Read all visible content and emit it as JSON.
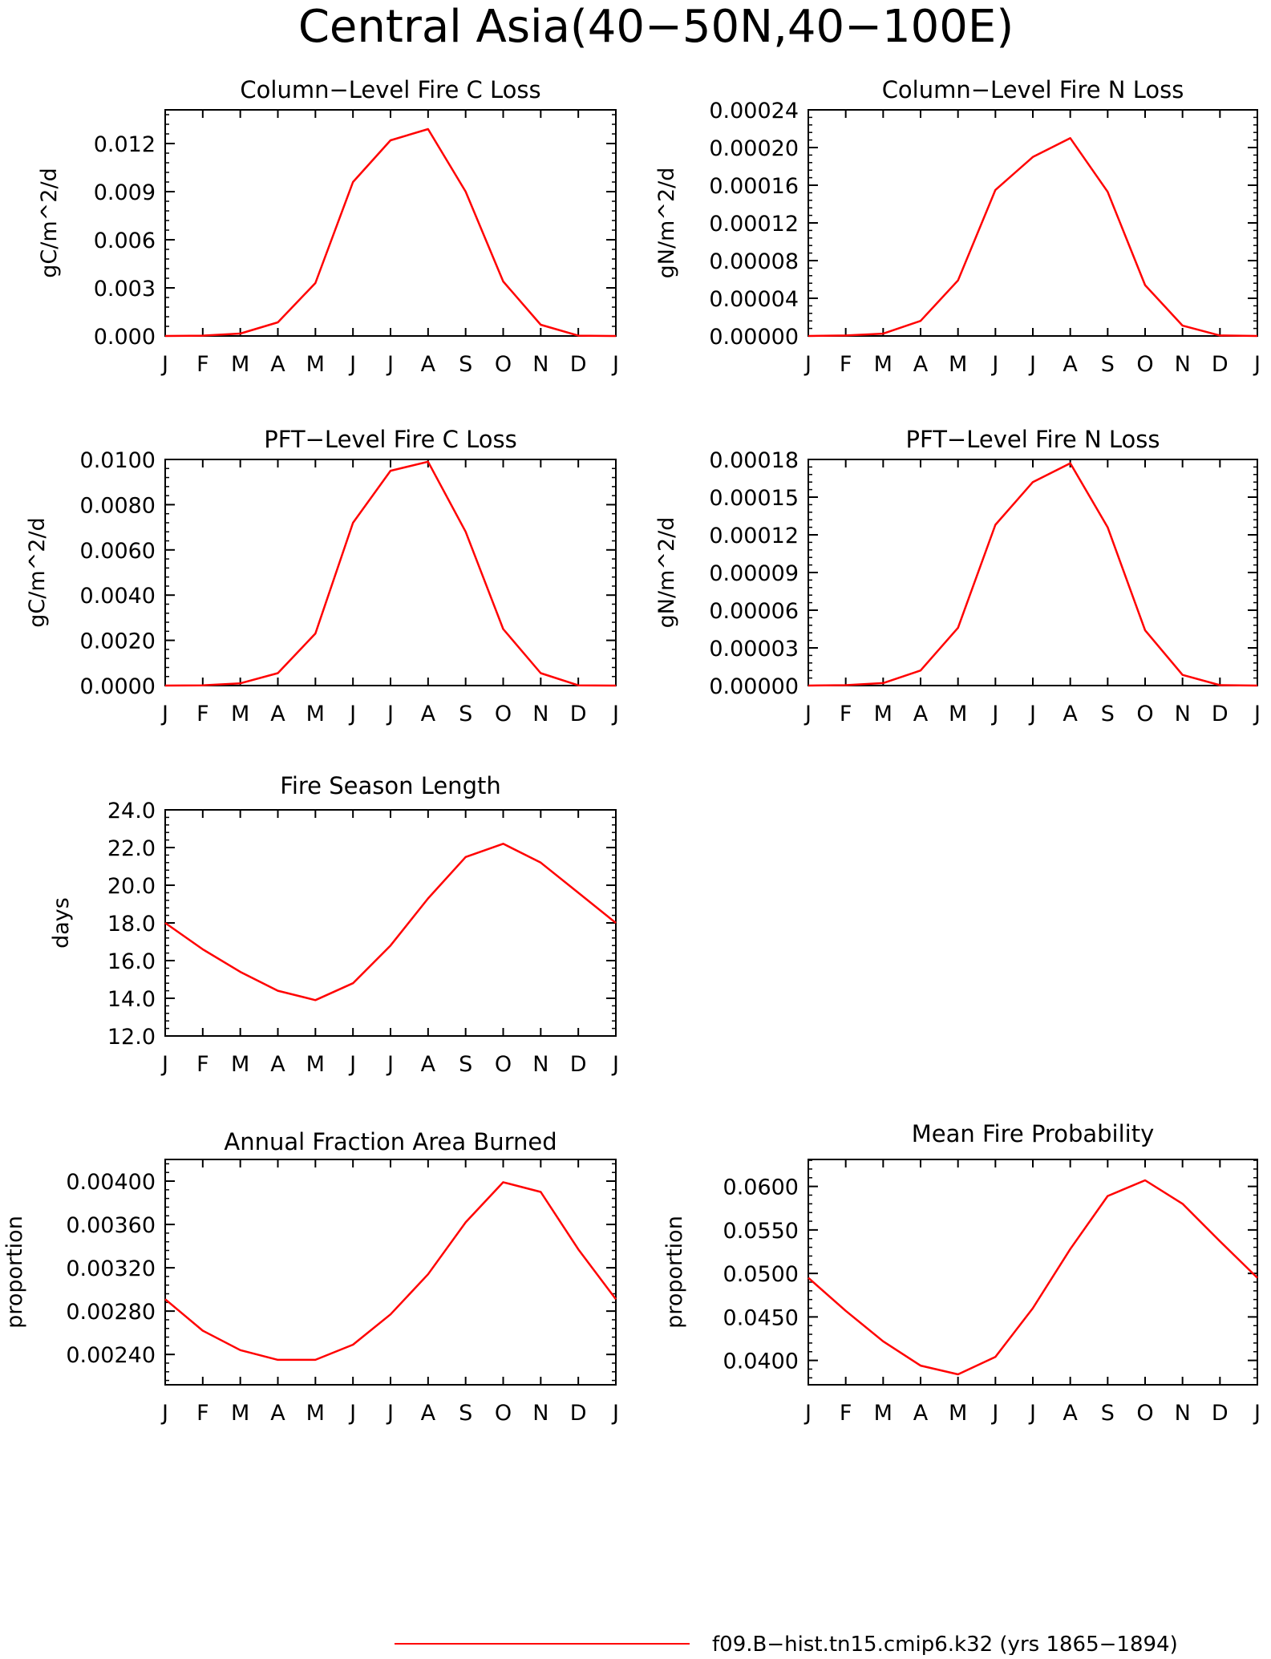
{
  "title": "Central Asia(40−50N,40−100E)",
  "colors": {
    "series": "#ff0000",
    "axes": "#000000",
    "background": "#ffffff"
  },
  "legend": {
    "label": "f09.B−hist.tn15.cmip6.k32 (yrs 1865−1894)",
    "color": "#ff0000"
  },
  "chart_data": [
    {
      "type": "line",
      "title": "Column−Level Fire C Loss",
      "ylabel": "gC/m^2/d",
      "categories": [
        "J",
        "F",
        "M",
        "A",
        "M",
        "J",
        "J",
        "A",
        "S",
        "O",
        "N",
        "D",
        "J"
      ],
      "ylim": [
        0,
        0.0141
      ],
      "yticks": [
        0,
        0.003,
        0.006,
        0.009,
        0.012
      ],
      "ytick_labels": [
        "0.000",
        "0.003",
        "0.006",
        "0.009",
        "0.012"
      ],
      "series": [
        {
          "values": [
            0.0,
            2e-05,
            0.00015,
            0.00085,
            0.0033,
            0.0096,
            0.0122,
            0.0129,
            0.009,
            0.0034,
            0.0007,
            2e-05,
            0.0
          ]
        }
      ]
    },
    {
      "type": "line",
      "title": "Column−Level Fire N Loss",
      "ylabel": "gN/m^2/d",
      "categories": [
        "J",
        "F",
        "M",
        "A",
        "M",
        "J",
        "J",
        "A",
        "S",
        "O",
        "N",
        "D",
        "J"
      ],
      "ylim": [
        0,
        0.00024
      ],
      "yticks": [
        0,
        4e-05,
        8e-05,
        0.00012,
        0.00016,
        0.0002,
        0.00024
      ],
      "ytick_labels": [
        "0.00000",
        "0.00004",
        "0.00008",
        "0.00012",
        "0.00016",
        "0.00020",
        "0.00024"
      ],
      "series": [
        {
          "values": [
            0.0,
            5e-07,
            2.5e-06,
            1.6e-05,
            5.9e-05,
            0.000155,
            0.00019,
            0.00021,
            0.000153,
            5.4e-05,
            1.1e-05,
            5e-07,
            0.0
          ]
        }
      ]
    },
    {
      "type": "line",
      "title": "PFT−Level Fire C Loss",
      "ylabel": "gC/m^2/d",
      "categories": [
        "J",
        "F",
        "M",
        "A",
        "M",
        "J",
        "J",
        "A",
        "S",
        "O",
        "N",
        "D",
        "J"
      ],
      "ylim": [
        0,
        0.01
      ],
      "yticks": [
        0,
        0.002,
        0.004,
        0.006,
        0.008,
        0.01
      ],
      "ytick_labels": [
        "0.0000",
        "0.0020",
        "0.0040",
        "0.0060",
        "0.0080",
        "0.0100"
      ],
      "series": [
        {
          "values": [
            0.0,
            1e-05,
            0.0001,
            0.00055,
            0.0023,
            0.0072,
            0.0095,
            0.0099,
            0.0068,
            0.0025,
            0.00055,
            1e-05,
            0.0
          ]
        }
      ]
    },
    {
      "type": "line",
      "title": "PFT−Level Fire N Loss",
      "ylabel": "gN/m^2/d",
      "categories": [
        "J",
        "F",
        "M",
        "A",
        "M",
        "J",
        "J",
        "A",
        "S",
        "O",
        "N",
        "D",
        "J"
      ],
      "ylim": [
        0,
        0.00018
      ],
      "yticks": [
        0,
        3e-05,
        6e-05,
        9e-05,
        0.00012,
        0.00015,
        0.00018
      ],
      "ytick_labels": [
        "0.00000",
        "0.00003",
        "0.00006",
        "0.00009",
        "0.00012",
        "0.00015",
        "0.00018"
      ],
      "series": [
        {
          "values": [
            0.0,
            3e-07,
            2e-06,
            1.2e-05,
            4.6e-05,
            0.000128,
            0.000162,
            0.000177,
            0.000126,
            4.4e-05,
            8.5e-06,
            3e-07,
            0.0
          ]
        }
      ]
    },
    {
      "type": "line",
      "title": "Fire Season Length",
      "ylabel": "days",
      "categories": [
        "J",
        "F",
        "M",
        "A",
        "M",
        "J",
        "J",
        "A",
        "S",
        "O",
        "N",
        "D",
        "J"
      ],
      "ylim": [
        12,
        24
      ],
      "yticks": [
        12,
        14,
        16,
        18,
        20,
        22,
        24
      ],
      "ytick_labels": [
        "12.0",
        "14.0",
        "16.0",
        "18.0",
        "20.0",
        "22.0",
        "24.0"
      ],
      "series": [
        {
          "values": [
            18.0,
            16.6,
            15.4,
            14.4,
            13.9,
            14.8,
            16.8,
            19.3,
            21.5,
            22.2,
            21.2,
            19.6,
            18.0
          ]
        }
      ]
    },
    {
      "type": "line",
      "title": "Annual Fraction Area Burned",
      "ylabel": "proportion",
      "categories": [
        "J",
        "F",
        "M",
        "A",
        "M",
        "J",
        "J",
        "A",
        "S",
        "O",
        "N",
        "D",
        "J"
      ],
      "ylim": [
        0.00212,
        0.0042
      ],
      "yticks": [
        0.0024,
        0.0028,
        0.0032,
        0.0036,
        0.004
      ],
      "ytick_labels": [
        "0.00240",
        "0.00280",
        "0.00320",
        "0.00360",
        "0.00400"
      ],
      "series": [
        {
          "values": [
            0.00291,
            0.00262,
            0.00244,
            0.00235,
            0.00235,
            0.00249,
            0.00277,
            0.00314,
            0.00362,
            0.00399,
            0.0039,
            0.00337,
            0.00291
          ]
        }
      ]
    },
    {
      "type": "line",
      "title": "Mean Fire Probability",
      "ylabel": "proportion",
      "categories": [
        "J",
        "F",
        "M",
        "A",
        "M",
        "J",
        "J",
        "A",
        "S",
        "O",
        "N",
        "D",
        "J"
      ],
      "ylim": [
        0.0372,
        0.0631
      ],
      "yticks": [
        0.04,
        0.045,
        0.05,
        0.055,
        0.06
      ],
      "ytick_labels": [
        "0.0400",
        "0.0450",
        "0.0500",
        "0.0550",
        "0.0600"
      ],
      "series": [
        {
          "values": [
            0.0495,
            0.0457,
            0.0422,
            0.0394,
            0.0384,
            0.0404,
            0.046,
            0.0528,
            0.0589,
            0.0607,
            0.058,
            0.0537,
            0.0495
          ]
        }
      ]
    }
  ]
}
